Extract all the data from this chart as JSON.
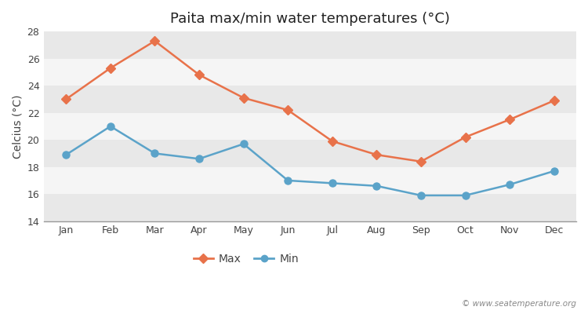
{
  "title": "Paita max/min water temperatures (°C)",
  "ylabel": "Celcius (°C)",
  "months": [
    "Jan",
    "Feb",
    "Mar",
    "Apr",
    "May",
    "Jun",
    "Jul",
    "Aug",
    "Sep",
    "Oct",
    "Nov",
    "Dec"
  ],
  "max_temps": [
    23.0,
    25.3,
    27.3,
    24.8,
    23.1,
    22.2,
    19.9,
    18.9,
    18.4,
    20.2,
    21.5,
    22.9
  ],
  "min_temps": [
    18.9,
    21.0,
    19.0,
    18.6,
    19.7,
    17.0,
    16.8,
    16.6,
    15.9,
    15.9,
    16.7,
    17.7
  ],
  "max_color": "#e8724a",
  "min_color": "#5ba3c9",
  "background_color": "#ffffff",
  "band_colors": [
    "#e8e8e8",
    "#f5f5f5"
  ],
  "ylim": [
    14,
    28
  ],
  "yticks": [
    14,
    16,
    18,
    20,
    22,
    24,
    26,
    28
  ],
  "watermark": "© www.seatemperature.org",
  "title_fontsize": 13,
  "axis_label_fontsize": 10,
  "tick_fontsize": 9,
  "legend_labels": [
    "Max",
    "Min"
  ]
}
